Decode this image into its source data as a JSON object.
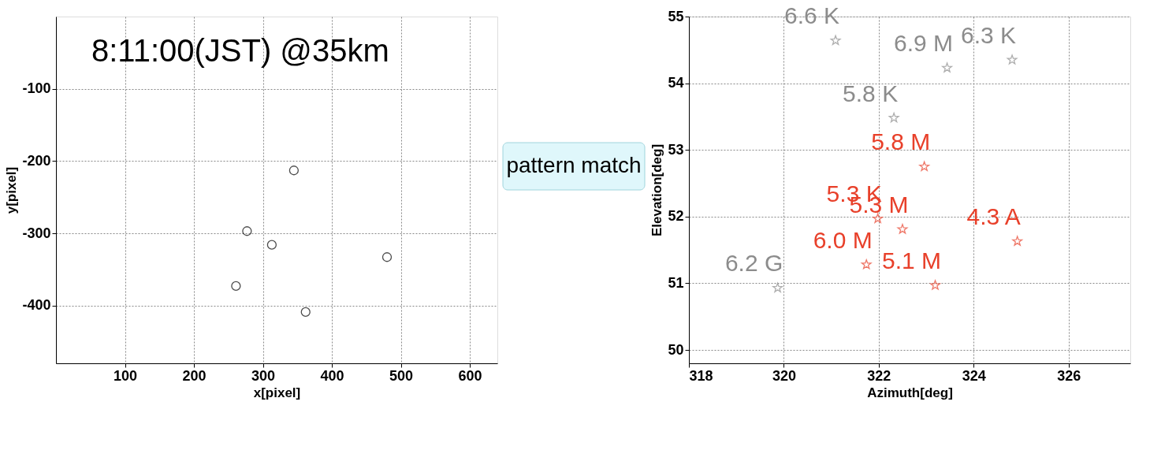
{
  "chart_data": [
    {
      "type": "scatter",
      "xlabel": "x[pixel]",
      "ylabel": "y[pixel]",
      "annotations": [
        "8:11:00(JST) @35km",
        "pattern match"
      ],
      "xlim": [
        0,
        640
      ],
      "ylim": [
        -480,
        0
      ],
      "xticks": [
        100,
        200,
        300,
        400,
        500,
        600
      ],
      "yticks": [
        -100,
        -200,
        -300,
        -400
      ],
      "grid": true,
      "marker": "circle",
      "series": [
        {
          "color": "#000000",
          "x": [
            345,
            277,
            313,
            480,
            261,
            362
          ],
          "values": [
            -213,
            -297,
            -316,
            -333,
            -373,
            -409
          ]
        }
      ]
    },
    {
      "type": "scatter",
      "xlabel": "Azimuth[deg]",
      "ylabel": "Elevation[deg]",
      "xlim": [
        318,
        327.3
      ],
      "ylim": [
        49.8,
        55
      ],
      "xticks": [
        318,
        320,
        322,
        324,
        326
      ],
      "yticks": [
        50,
        51,
        52,
        53,
        54,
        55
      ],
      "grid": true,
      "marker": "star",
      "annotations": [
        {
          "text": "6.6 K",
          "x": 321.09,
          "y": 54.64
        },
        {
          "text": "6.9 M",
          "x": 323.44,
          "y": 54.23
        },
        {
          "text": "6.3 K",
          "x": 324.81,
          "y": 54.35
        },
        {
          "text": "5.8 K",
          "x": 322.32,
          "y": 53.48
        },
        {
          "text": "6.2 G",
          "x": 319.87,
          "y": 50.93
        },
        {
          "text": "5.8 M",
          "x": 322.96,
          "y": 52.75
        },
        {
          "text": "5.3 K",
          "x": 321.98,
          "y": 51.97
        },
        {
          "text": "5.3 M",
          "x": 322.5,
          "y": 51.81
        },
        {
          "text": "4.3 A",
          "x": 324.92,
          "y": 51.63
        },
        {
          "text": "6.0 M",
          "x": 321.74,
          "y": 51.28
        },
        {
          "text": "5.1 M",
          "x": 323.19,
          "y": 50.97
        }
      ],
      "series": [
        {
          "color": "#8c8c8c",
          "x": [
            321.09,
            323.44,
            324.81,
            322.32,
            319.87
          ],
          "values": [
            54.64,
            54.23,
            54.35,
            53.48,
            50.93
          ]
        },
        {
          "color": "#e8402a",
          "x": [
            322.96,
            321.98,
            322.5,
            324.92,
            321.74,
            323.19
          ],
          "values": [
            52.75,
            51.97,
            51.81,
            51.63,
            51.28,
            50.97
          ]
        }
      ]
    }
  ]
}
